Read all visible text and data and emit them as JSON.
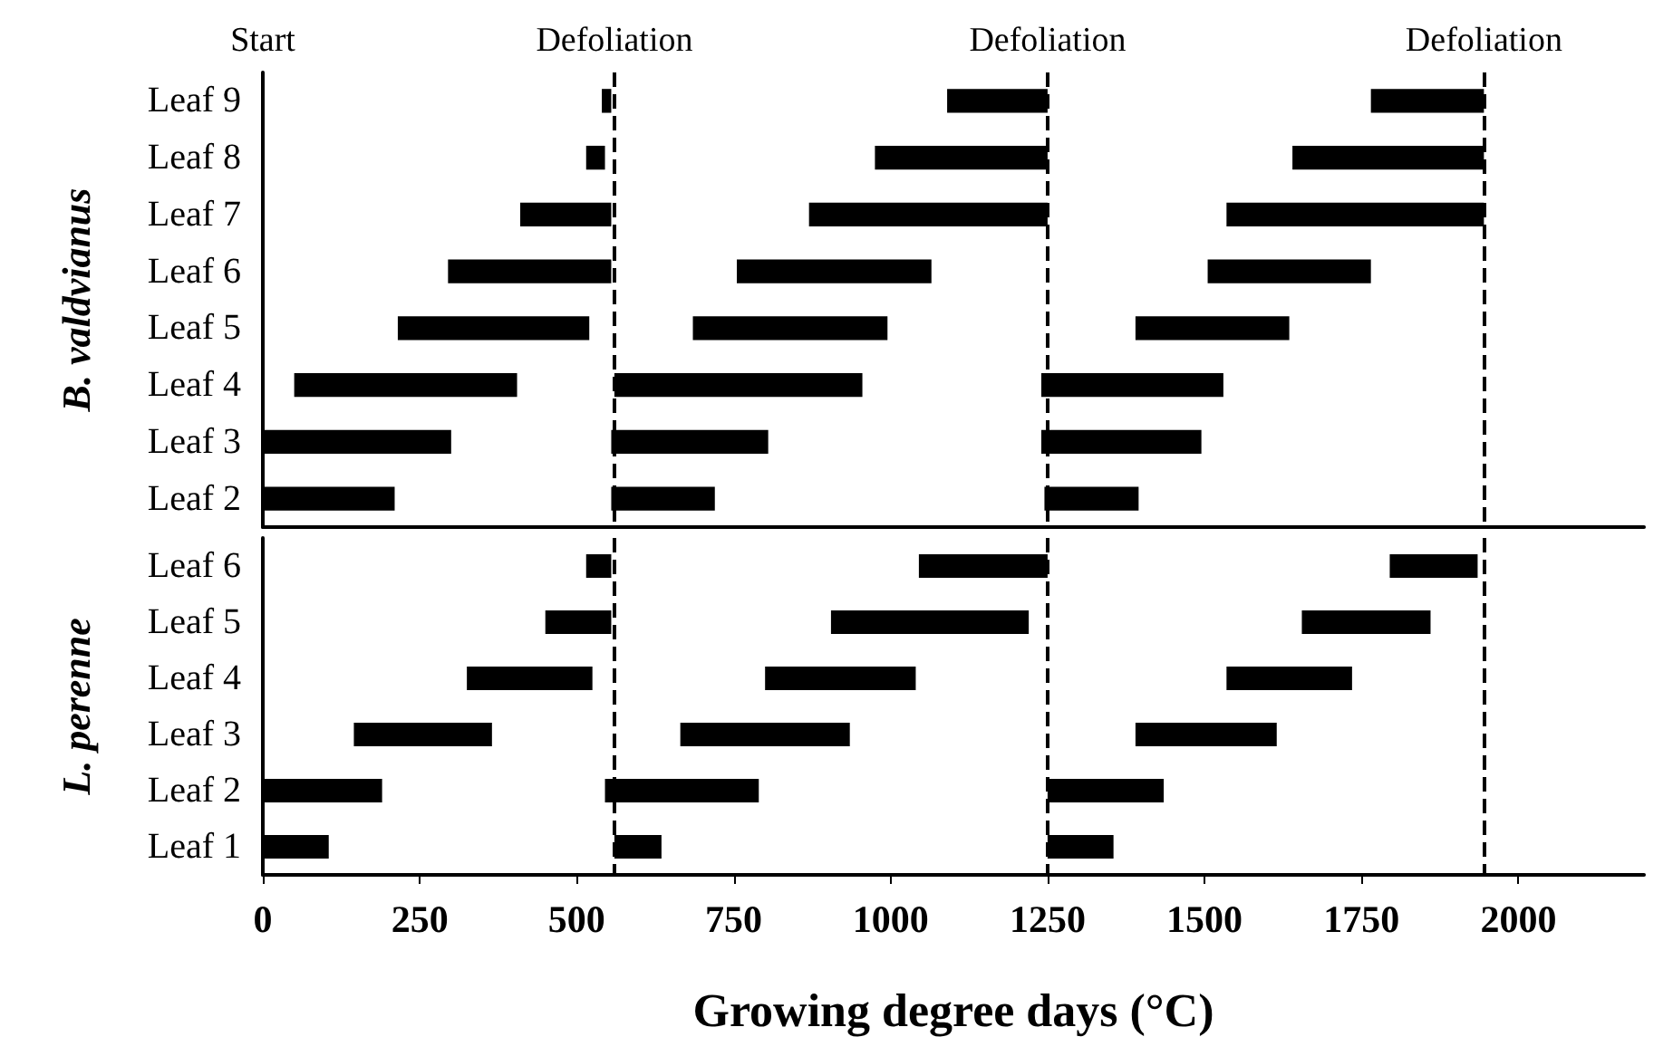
{
  "chart_data": [
    {
      "type": "bar",
      "orientation": "horizontal",
      "ylabel": "B. valdvianus",
      "categories": [
        "Leaf 9",
        "Leaf 8",
        "Leaf 7",
        "Leaf 6",
        "Leaf 5",
        "Leaf 4",
        "Leaf 3",
        "Leaf 2"
      ],
      "series": [
        {
          "color": "#000000",
          "base": [
            540,
            515,
            410,
            295,
            215,
            50,
            0,
            0
          ],
          "values": [
            15,
            30,
            145,
            260,
            305,
            355,
            300,
            210
          ]
        },
        {
          "color": "#000000",
          "base": [
            1090,
            975,
            870,
            755,
            685,
            560,
            555,
            555
          ],
          "values": [
            160,
            275,
            380,
            310,
            310,
            395,
            250,
            165
          ]
        },
        {
          "color": "#000000",
          "base": [
            1765,
            1640,
            1535,
            1505,
            1390,
            1240,
            1240,
            1245
          ],
          "values": [
            180,
            305,
            410,
            260,
            245,
            290,
            255,
            150
          ]
        }
      ],
      "xlim": [
        0,
        2200
      ],
      "xticks": [
        0,
        250,
        500,
        750,
        1000,
        1250,
        1500,
        1750,
        2000
      ],
      "tick_labels": "y",
      "grid": false,
      "annotations": [
        "Start"
      ],
      "ref_lines": [
        {
          "axis": "x",
          "value": 560,
          "label": "Defoliation",
          "line_style": "dashed",
          "color": "#000000"
        },
        {
          "axis": "x",
          "value": 1250,
          "label": "Defoliation",
          "line_style": "dashed",
          "color": "#000000"
        },
        {
          "axis": "x",
          "value": 1945,
          "label": "Defoliation",
          "line_style": "dashed",
          "color": "#000000"
        }
      ]
    },
    {
      "type": "bar",
      "orientation": "horizontal",
      "ylabel": "L. perenne",
      "xlabel": "Growing degree days (°C)",
      "categories": [
        "Leaf 6",
        "Leaf 5",
        "Leaf 4",
        "Leaf 3",
        "Leaf 2",
        "Leaf 1"
      ],
      "series": [
        {
          "color": "#000000",
          "base": [
            515,
            450,
            325,
            145,
            0,
            0
          ],
          "values": [
            40,
            105,
            200,
            220,
            190,
            105
          ]
        },
        {
          "color": "#000000",
          "base": [
            1045,
            905,
            800,
            665,
            545,
            560
          ],
          "values": [
            205,
            315,
            240,
            270,
            245,
            75
          ]
        },
        {
          "color": "#000000",
          "base": [
            1795,
            1655,
            1535,
            1390,
            1250,
            1250
          ],
          "values": [
            140,
            205,
            200,
            225,
            185,
            105
          ]
        }
      ],
      "xlim": [
        0,
        2200
      ],
      "xticks": [
        0,
        250,
        500,
        750,
        1000,
        1250,
        1500,
        1750,
        2000
      ],
      "grid": false,
      "ref_lines": [
        {
          "axis": "x",
          "value": 560,
          "line_style": "dashed",
          "color": "#000000"
        },
        {
          "axis": "x",
          "value": 1250,
          "line_style": "dashed",
          "color": "#000000"
        },
        {
          "axis": "x",
          "value": 1945,
          "line_style": "dashed",
          "color": "#000000"
        }
      ]
    }
  ]
}
